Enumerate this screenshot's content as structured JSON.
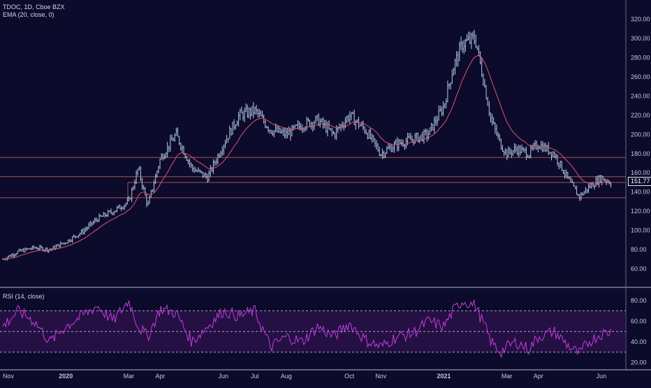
{
  "price_legend": {
    "symbol_line": "TDOC, 1D, Cboe BZX",
    "ema_line": "EMA (20, close, 0)"
  },
  "rsi_legend": "RSI (14, close)",
  "last_price_label": "151.77",
  "colors": {
    "background": "#0c0b2b",
    "candle": "#b7cde8",
    "ema": "#e0556f",
    "rsi": "#c13ddb",
    "rsi_band": "#3a1559",
    "level_line": "#a4554f",
    "axis_text": "#c8c8d8"
  },
  "chart_data": [
    {
      "type": "candlestick",
      "title": "TDOC, 1D, Cboe BZX",
      "overlay": "EMA (20, close, 0)",
      "x_axis": {
        "tick_labels": [
          "Nov",
          "2020",
          "Mar",
          "Apr",
          "Jun",
          "Jul",
          "Aug",
          "Oct",
          "Nov",
          "2021",
          "Mar",
          "Apr",
          "Jun"
        ],
        "tick_months": [
          0,
          2,
          4,
          5,
          7,
          8,
          9,
          11,
          12,
          14,
          16,
          17,
          19
        ]
      },
      "y_axis": {
        "ylim": [
          45,
          330
        ],
        "ticks": [
          60,
          80,
          100,
          120,
          140,
          160,
          180,
          200,
          220,
          240,
          260,
          280,
          300,
          320
        ]
      },
      "close_path": {
        "months": [
          0,
          0.5,
          1,
          1.5,
          2,
          2.5,
          3,
          3.5,
          4,
          4.3,
          4.6,
          5,
          5.5,
          6,
          6.5,
          7,
          7.5,
          8,
          8.5,
          9,
          9.5,
          10,
          10.5,
          11,
          11.5,
          12,
          12.5,
          13,
          13.5,
          14,
          14.3,
          14.6,
          15,
          15.3,
          15.5,
          15.8,
          16,
          16.3,
          16.7,
          17,
          17.5,
          18,
          18.3,
          18.6,
          19,
          19.3
        ],
        "values": [
          70,
          78,
          82,
          80,
          88,
          98,
          112,
          120,
          130,
          165,
          125,
          175,
          200,
          165,
          155,
          190,
          220,
          225,
          205,
          200,
          210,
          215,
          200,
          220,
          205,
          180,
          190,
          195,
          200,
          230,
          270,
          295,
          300,
          250,
          215,
          190,
          180,
          185,
          180,
          190,
          180,
          150,
          135,
          145,
          155,
          150
        ]
      },
      "levels": [
        176,
        156,
        150,
        134
      ],
      "level_labels": [
        "151.77"
      ],
      "last_value": 151.77
    },
    {
      "type": "line",
      "title": "RSI (14, close)",
      "y_axis": {
        "ylim": [
          15,
          88
        ],
        "ticks": [
          20,
          40,
          60,
          80
        ]
      },
      "reference_lines": [
        70,
        50,
        30
      ],
      "band": [
        30,
        70
      ],
      "rsi_path": {
        "months": [
          0,
          0.5,
          1,
          1.5,
          2,
          2.5,
          3,
          3.5,
          4,
          4.3,
          4.6,
          5,
          5.5,
          6,
          6.5,
          7,
          7.5,
          8,
          8.5,
          9,
          9.5,
          10,
          10.5,
          11,
          11.5,
          12,
          12.5,
          13,
          13.5,
          14,
          14.3,
          14.6,
          15,
          15.3,
          15.5,
          15.8,
          16,
          16.3,
          16.7,
          17,
          17.5,
          18,
          18.3,
          18.6,
          19,
          19.3
        ],
        "values": [
          55,
          70,
          60,
          40,
          55,
          65,
          75,
          60,
          80,
          55,
          45,
          72,
          68,
          40,
          55,
          70,
          65,
          70,
          35,
          45,
          40,
          55,
          45,
          58,
          42,
          35,
          45,
          48,
          60,
          55,
          70,
          80,
          75,
          55,
          40,
          30,
          35,
          40,
          33,
          45,
          50,
          35,
          28,
          40,
          48,
          50
        ]
      }
    }
  ]
}
